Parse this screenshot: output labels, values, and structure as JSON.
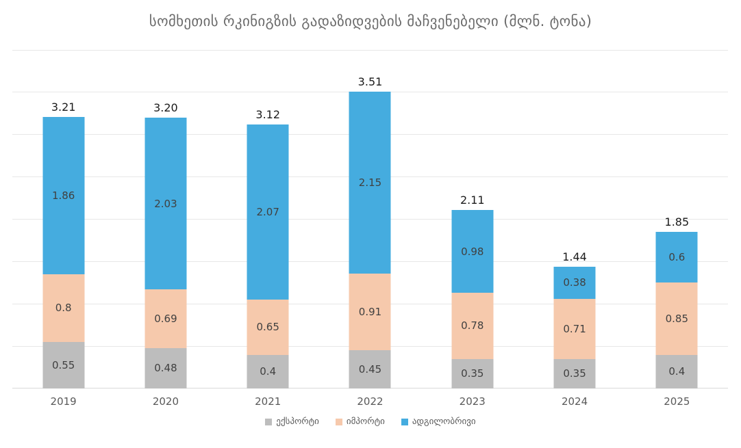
{
  "chart_data": {
    "type": "bar",
    "stacked": true,
    "title": "სომხეთის რკინიგზის გადაზიდვების მაჩვენებელი (მლნ. ტონა)",
    "categories": [
      "2019",
      "2020",
      "2021",
      "2022",
      "2023",
      "2024",
      "2025"
    ],
    "series": [
      {
        "key": "export",
        "name": "ექსპორტი",
        "color": "#BDBDBD",
        "values": [
          0.55,
          0.48,
          0.4,
          0.45,
          0.35,
          0.35,
          0.4
        ],
        "labels": [
          "0.55",
          "0.48",
          "0.4",
          "0.45",
          "0.35",
          "0.35",
          "0.4"
        ]
      },
      {
        "key": "import",
        "name": "იმპორტი",
        "color": "#F6C9AC",
        "values": [
          0.8,
          0.69,
          0.65,
          0.91,
          0.78,
          0.71,
          0.85
        ],
        "labels": [
          "0.8",
          "0.69",
          "0.65",
          "0.91",
          "0.78",
          "0.71",
          "0.85"
        ]
      },
      {
        "key": "local",
        "name": "ადგილობრივი",
        "color": "#45ACDF",
        "values": [
          1.86,
          2.03,
          2.07,
          2.15,
          0.98,
          0.38,
          0.6
        ],
        "labels": [
          "1.86",
          "2.03",
          "2.07",
          "2.15",
          "0.98",
          "0.38",
          "0.6"
        ]
      }
    ],
    "totals": [
      3.21,
      3.2,
      3.12,
      3.51,
      2.11,
      1.44,
      1.85
    ],
    "total_labels": [
      "3.21",
      "3.20",
      "3.12",
      "3.51",
      "2.11",
      "1.44",
      "1.85"
    ],
    "ylim": [
      0,
      4
    ],
    "grid_step": 0.5,
    "grid": true,
    "legend_position": "bottom",
    "colors": {
      "title": "#6B6B6B",
      "grid": "#E7E7E7",
      "baseline": "#D9D9D9",
      "total_label": "#1A1A1A",
      "segment_label": "#404040",
      "axis_label": "#595959",
      "legend_label": "#595959",
      "background": "#FFFFFF"
    }
  }
}
